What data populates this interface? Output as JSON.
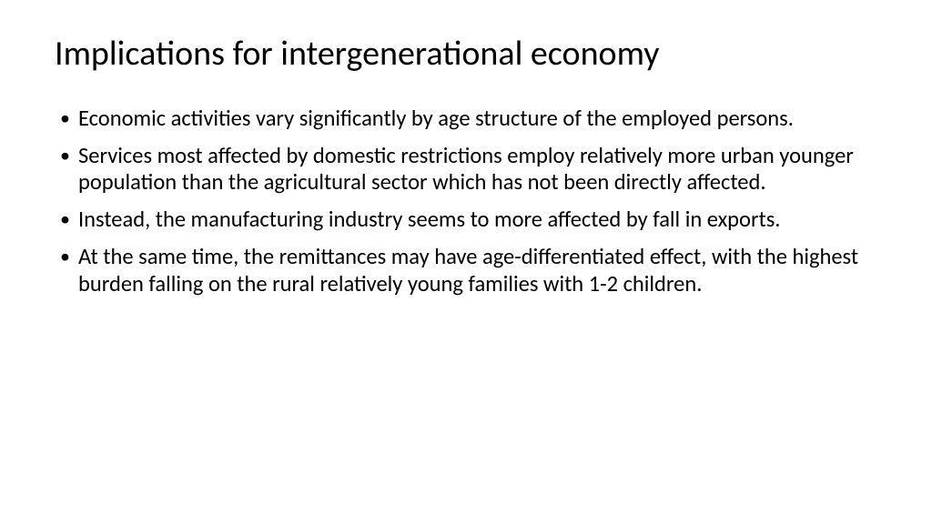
{
  "slide": {
    "title": "Implications for intergenerational economy",
    "bullets": [
      "Economic activities vary significantly by age structure of the employed persons.",
      "Services most affected by domestic restrictions employ relatively more urban younger population than the agricultural sector which has not been directly affected.",
      "Instead, the manufacturing industry seems to more affected by fall in exports.",
      "At the same time, the remittances may have age-differentiated effect, with the highest burden falling on the rural relatively young families with 1-2 children."
    ],
    "title_fontsize": 38,
    "body_fontsize": 24.5,
    "text_color": "#000000",
    "background_color": "#ffffff",
    "font_family": "Calibri"
  }
}
